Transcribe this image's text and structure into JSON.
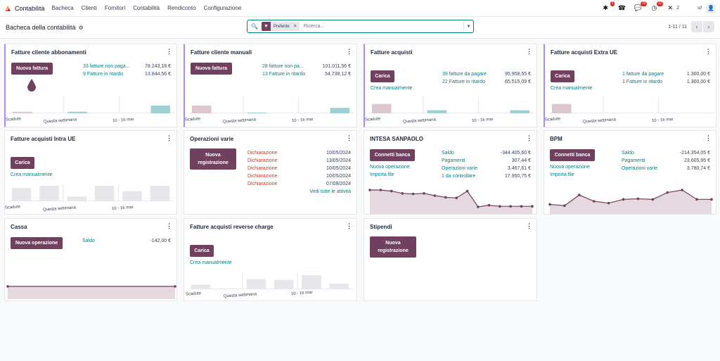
{
  "topbar": {
    "app_title": "Contabilità",
    "nav": [
      "Bacheca",
      "Clienti",
      "Fornitori",
      "Contabilità",
      "Rendiconto",
      "Configurazione"
    ],
    "badges": {
      "bug": "1",
      "chat": "70",
      "activity": "12"
    },
    "company": "sif",
    "tools_label": "Z"
  },
  "controlbar": {
    "title": "Bacheca della contabilità",
    "facet": "Preferite",
    "search_placeholder": "Ricerca...",
    "pager": "1-11 / 11"
  },
  "colors": {
    "accent": "#71405f",
    "link": "#017e84",
    "bar_red": "#dcc7cd",
    "bar_teal": "#9ecfd3",
    "bar_gray": "#e5e7eb"
  },
  "cards": {
    "fca": {
      "title": "Fatture cliente abbonamenti",
      "button": "Nuova fattura",
      "rows": [
        {
          "label": "33 fatture non paga...",
          "value": "78.243,18 €"
        },
        {
          "label": "9 Fatture in ritardo",
          "value": "13.844,56 €"
        }
      ],
      "axis": [
        "Scadute",
        "Questa settimana",
        "10 - 16 mar"
      ]
    },
    "fcm": {
      "title": "Fatture cliente manuali",
      "button": "Nuova fattura",
      "rows": [
        {
          "label": "28 fatture non pa...",
          "value": "101.011,56 €"
        },
        {
          "label": "13 Fatture in ritardo",
          "value": "54.738,12 €"
        }
      ],
      "axis": [
        "Scadute",
        "Questa settimana",
        "10 - 16 mar"
      ]
    },
    "fa": {
      "title": "Fatture acquisti",
      "button": "Carica",
      "link": "Crea manualmente",
      "rows": [
        {
          "label": "39 fatture da pagare",
          "value": "95.958,55 €"
        },
        {
          "label": "22 Fatture in ritardo",
          "value": "65.515,09 €"
        }
      ],
      "axis": [
        "Scadute",
        "Questa settimana",
        "10 - 16 mar"
      ]
    },
    "fae": {
      "title": "Fatture acquisti Extra UE",
      "button": "Carica",
      "link": "Crea manualmente",
      "rows": [
        {
          "label": "1 fatture da pagare",
          "value": "1.300,00 €"
        },
        {
          "label": "1 Fatture in ritardo",
          "value": "1.300,00 €"
        }
      ],
      "axis": [
        "Scadute",
        "Questa settimana",
        "10 - 16 mar"
      ]
    },
    "fai": {
      "title": "Fatture acquisti Intra UE",
      "button": "Carica",
      "link": "Crea manualmente",
      "axis": [
        "Scadute",
        "Questa settimana",
        "10 - 16 mar"
      ]
    },
    "ov": {
      "title": "Operazioni varie",
      "button": "Nuova registrazione",
      "rows": [
        {
          "label": "Dichiarazione",
          "date": "10/05/2024"
        },
        {
          "label": "Dichiarazione",
          "date": "13/05/2024"
        },
        {
          "label": "Dichiarazione",
          "date": "10/05/2024"
        },
        {
          "label": "Dichiarazione",
          "date": "10/05/2024"
        },
        {
          "label": "Dichiarazione",
          "date": "07/08/2024"
        }
      ],
      "all_link": "Vedi tutte le attività"
    },
    "intesa": {
      "title": "INTESA SANPAOLO",
      "button": "Connetti banca",
      "links": [
        "Nuova operazione",
        "Importa file"
      ],
      "rows": [
        {
          "label": "Saldo",
          "value": "-344.405,60 €"
        },
        {
          "label": "Pagamenti",
          "value": "307,44 €"
        },
        {
          "label": "Operazioni varie",
          "value": "3.467,61 €"
        },
        {
          "label": "1 da controllare",
          "value": "17.950,75 €"
        }
      ]
    },
    "bpm": {
      "title": "BPM",
      "button": "Connetti banca",
      "links": [
        "Nuova operazione",
        "Importa file"
      ],
      "rows": [
        {
          "label": "Saldo",
          "value": "-214.354,05 €"
        },
        {
          "label": "Pagamenti",
          "value": "23.605,95 €"
        },
        {
          "label": "Operazioni varie",
          "value": "3.780,74 €"
        }
      ]
    },
    "cassa": {
      "title": "Cassa",
      "button": "Nuova operazione",
      "rows": [
        {
          "label": "Saldo",
          "value": "-142,00 €"
        }
      ]
    },
    "farc": {
      "title": "Fatture acquisti reverse charge",
      "button": "Carica",
      "link": "Crea manualmente",
      "axis": [
        "Scadute",
        "Questa settimana",
        "10 - 16 mar"
      ]
    },
    "stip": {
      "title": "Stipendi",
      "button": "Nuova registrazione"
    }
  },
  "chart_data": [
    {
      "type": "bar",
      "name": "fca",
      "categories": [
        "Scadute",
        "",
        "Questa settimana",
        "",
        "10 - 16 mar",
        ""
      ],
      "values": [
        2,
        0,
        2,
        0,
        0,
        10
      ]
    },
    {
      "type": "bar",
      "name": "fcm",
      "categories": [
        "Scadute",
        "",
        "Questa settimana",
        "",
        "10 - 16 mar",
        ""
      ],
      "values": [
        10,
        0,
        1,
        0,
        0,
        7
      ]
    },
    {
      "type": "bar",
      "name": "fa",
      "categories": [
        "Scadute",
        "",
        "Questa settimana",
        "",
        "10 - 16 mar",
        ""
      ],
      "values": [
        12,
        0,
        4,
        0,
        0,
        4
      ]
    },
    {
      "type": "bar",
      "name": "fae",
      "categories": [
        "Scadute",
        "",
        "Questa settimana",
        "",
        "10 - 16 mar",
        ""
      ],
      "values": [
        12,
        0,
        0,
        0,
        0,
        0
      ]
    },
    {
      "type": "bar",
      "name": "fai",
      "categories": [
        "Scadute",
        "",
        "Questa settimana",
        "",
        "10 - 16 mar",
        ""
      ],
      "values": [
        17,
        20,
        6,
        20,
        13,
        20
      ]
    },
    {
      "type": "bar",
      "name": "farc",
      "categories": [
        "Scadute",
        "",
        "Questa settimana",
        "",
        "10 - 16 mar",
        ""
      ],
      "values": [
        6,
        1,
        13,
        12,
        18,
        7
      ]
    },
    {
      "type": "area",
      "name": "intesa",
      "values": [
        30,
        30,
        28,
        24,
        23,
        24,
        20,
        17,
        16,
        28,
        0,
        3,
        1,
        1,
        1,
        1
      ]
    },
    {
      "type": "area",
      "name": "bpm",
      "values": [
        4,
        2,
        19,
        9,
        6,
        12,
        13,
        12,
        23,
        27,
        12,
        12
      ]
    },
    {
      "type": "area",
      "name": "cassa",
      "values": [
        0,
        0
      ]
    }
  ]
}
